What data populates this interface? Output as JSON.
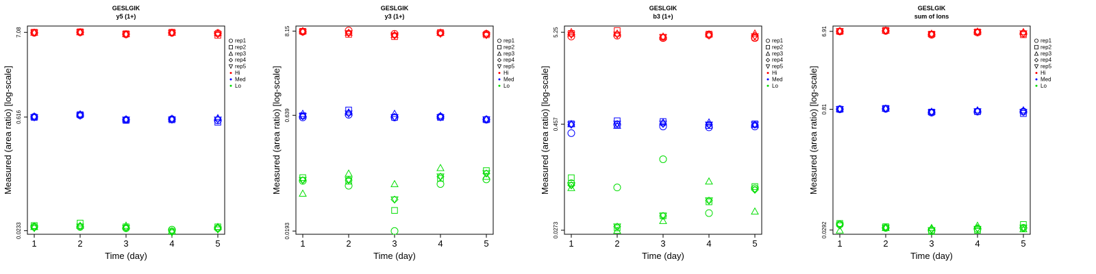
{
  "chart_data": [
    {
      "type": "scatter",
      "title": "GESLGIK",
      "subtitle": "y5 (1+)",
      "xlabel": "Time (day)",
      "ylabel": "Measured (area ratio) [log-scale]",
      "x_ticks": [
        "1",
        "2",
        "3",
        "4",
        "5"
      ],
      "y_tick_labels": [
        "7.08",
        "0.616",
        "0.0233"
      ],
      "y_tick_values": [
        7.08,
        0.616,
        0.0233
      ],
      "ylim": [
        0.021,
        8.5
      ],
      "y_scale": "log",
      "series": [
        {
          "group": "Hi",
          "rep": "rep1",
          "values": [
            7.0,
            7.1,
            6.7,
            7.0,
            6.9
          ]
        },
        {
          "group": "Hi",
          "rep": "rep2",
          "values": [
            7.1,
            7.2,
            6.8,
            7.1,
            6.5
          ]
        },
        {
          "group": "Hi",
          "rep": "rep3",
          "values": [
            7.05,
            7.15,
            6.75,
            7.05,
            7.0
          ]
        },
        {
          "group": "Hi",
          "rep": "rep4",
          "values": [
            7.0,
            7.1,
            6.7,
            7.0,
            6.8
          ]
        },
        {
          "group": "Hi",
          "rep": "rep5",
          "values": [
            7.0,
            7.05,
            6.65,
            6.95,
            6.7
          ]
        },
        {
          "group": "Med",
          "rep": "rep1",
          "values": [
            0.62,
            0.65,
            0.57,
            0.58,
            0.56
          ]
        },
        {
          "group": "Med",
          "rep": "rep2",
          "values": [
            0.61,
            0.66,
            0.56,
            0.57,
            0.53
          ]
        },
        {
          "group": "Med",
          "rep": "rep3",
          "values": [
            0.63,
            0.67,
            0.58,
            0.59,
            0.6
          ]
        },
        {
          "group": "Med",
          "rep": "rep4",
          "values": [
            0.62,
            0.65,
            0.57,
            0.58,
            0.58
          ]
        },
        {
          "group": "Med",
          "rep": "rep5",
          "values": [
            0.61,
            0.64,
            0.57,
            0.57,
            0.57
          ]
        },
        {
          "group": "Lo",
          "rep": "rep1",
          "values": [
            0.026,
            0.026,
            0.025,
            0.024,
            0.025
          ]
        },
        {
          "group": "Lo",
          "rep": "rep2",
          "values": [
            0.027,
            0.029,
            0.026,
            0.023,
            0.026
          ]
        },
        {
          "group": "Lo",
          "rep": "rep3",
          "values": [
            0.026,
            0.027,
            0.027,
            0.023,
            0.026
          ]
        },
        {
          "group": "Lo",
          "rep": "rep4",
          "values": [
            0.026,
            0.026,
            0.025,
            0.023,
            0.025
          ]
        },
        {
          "group": "Lo",
          "rep": "rep5",
          "values": [
            0.025,
            0.026,
            0.025,
            0.022,
            0.024
          ]
        }
      ]
    },
    {
      "type": "scatter",
      "title": "GESLGIK",
      "subtitle": "y3 (1+)",
      "xlabel": "Time (day)",
      "ylabel": "Measured (area ratio) [log-scale]",
      "x_ticks": [
        "1",
        "2",
        "3",
        "4",
        "5"
      ],
      "y_tick_labels": [
        "8.15",
        "0.639",
        "0.0193"
      ],
      "y_tick_values": [
        8.15,
        0.639,
        0.0193
      ],
      "ylim": [
        0.0175,
        9.5
      ],
      "y_scale": "log",
      "series": [
        {
          "group": "Hi",
          "rep": "rep1",
          "values": [
            8.0,
            8.3,
            7.5,
            7.7,
            7.5
          ]
        },
        {
          "group": "Hi",
          "rep": "rep2",
          "values": [
            8.1,
            7.4,
            6.9,
            7.8,
            7.3
          ]
        },
        {
          "group": "Hi",
          "rep": "rep3",
          "values": [
            8.2,
            7.8,
            7.3,
            7.8,
            7.6
          ]
        },
        {
          "group": "Hi",
          "rep": "rep4",
          "values": [
            8.0,
            7.7,
            7.2,
            7.6,
            7.3
          ]
        },
        {
          "group": "Hi",
          "rep": "rep5",
          "values": [
            7.9,
            7.6,
            7.1,
            7.5,
            7.2
          ]
        },
        {
          "group": "Med",
          "rep": "rep1",
          "values": [
            0.6,
            0.65,
            0.6,
            0.61,
            0.56
          ]
        },
        {
          "group": "Med",
          "rep": "rep2",
          "values": [
            0.63,
            0.75,
            0.6,
            0.6,
            0.56
          ]
        },
        {
          "group": "Med",
          "rep": "rep3",
          "values": [
            0.67,
            0.7,
            0.67,
            0.63,
            0.57
          ]
        },
        {
          "group": "Med",
          "rep": "rep4",
          "values": [
            0.62,
            0.68,
            0.61,
            0.61,
            0.56
          ]
        },
        {
          "group": "Med",
          "rep": "rep5",
          "values": [
            0.62,
            0.67,
            0.6,
            0.6,
            0.56
          ]
        },
        {
          "group": "Lo",
          "rep": "rep1",
          "values": [
            0.088,
            0.076,
            0.0193,
            0.08,
            0.092
          ]
        },
        {
          "group": "Lo",
          "rep": "rep2",
          "values": [
            0.097,
            0.087,
            0.036,
            0.095,
            0.12
          ]
        },
        {
          "group": "Lo",
          "rep": "rep3",
          "values": [
            0.06,
            0.11,
            0.08,
            0.13,
            0.1
          ]
        },
        {
          "group": "Lo",
          "rep": "rep4",
          "values": [
            0.09,
            0.09,
            0.05,
            0.1,
            0.11
          ]
        },
        {
          "group": "Lo",
          "rep": "rep5",
          "values": [
            0.09,
            0.09,
            0.05,
            0.1,
            0.11
          ]
        }
      ]
    },
    {
      "type": "scatter",
      "title": "GESLGIK",
      "subtitle": "b3 (1+)",
      "xlabel": "Time (day)",
      "ylabel": "Measured (area ratio) [log-scale]",
      "x_ticks": [
        "1",
        "2",
        "3",
        "4",
        "5"
      ],
      "y_tick_labels": [
        "5.25",
        "0.457",
        "0.0273"
      ],
      "y_tick_values": [
        5.25,
        0.457,
        0.0273
      ],
      "ylim": [
        0.0245,
        6.2
      ],
      "y_scale": "log",
      "series": [
        {
          "group": "Hi",
          "rep": "rep1",
          "values": [
            4.7,
            4.8,
            4.5,
            4.9,
            4.5
          ]
        },
        {
          "group": "Hi",
          "rep": "rep2",
          "values": [
            5.1,
            5.5,
            4.6,
            5.0,
            4.6
          ]
        },
        {
          "group": "Hi",
          "rep": "rep3",
          "values": [
            5.3,
            5.1,
            4.7,
            5.0,
            5.1
          ]
        },
        {
          "group": "Hi",
          "rep": "rep4",
          "values": [
            5.0,
            5.0,
            4.6,
            4.9,
            4.8
          ]
        },
        {
          "group": "Hi",
          "rep": "rep5",
          "values": [
            4.9,
            4.9,
            4.6,
            4.8,
            4.7
          ]
        },
        {
          "group": "Med",
          "rep": "rep1",
          "values": [
            0.36,
            0.45,
            0.43,
            0.42,
            0.43
          ]
        },
        {
          "group": "Med",
          "rep": "rep2",
          "values": [
            0.46,
            0.5,
            0.49,
            0.44,
            0.46
          ]
        },
        {
          "group": "Med",
          "rep": "rep3",
          "values": [
            0.46,
            0.44,
            0.48,
            0.48,
            0.45
          ]
        },
        {
          "group": "Med",
          "rep": "rep4",
          "values": [
            0.45,
            0.46,
            0.46,
            0.45,
            0.45
          ]
        },
        {
          "group": "Med",
          "rep": "rep5",
          "values": [
            0.45,
            0.46,
            0.46,
            0.45,
            0.45
          ]
        },
        {
          "group": "Lo",
          "rep": "rep1",
          "values": [
            0.095,
            0.085,
            0.18,
            0.043,
            0.083
          ]
        },
        {
          "group": "Lo",
          "rep": "rep2",
          "values": [
            0.11,
            0.029,
            0.04,
            0.058,
            0.087
          ]
        },
        {
          "group": "Lo",
          "rep": "rep3",
          "values": [
            0.084,
            0.027,
            0.035,
            0.1,
            0.045
          ]
        },
        {
          "group": "Lo",
          "rep": "rep4",
          "values": [
            0.09,
            0.03,
            0.04,
            0.06,
            0.08
          ]
        },
        {
          "group": "Lo",
          "rep": "rep5",
          "values": [
            0.09,
            0.03,
            0.04,
            0.06,
            0.08
          ]
        }
      ]
    },
    {
      "type": "scatter",
      "title": "GESLGIK",
      "subtitle": "sum of Ions",
      "xlabel": "Time (day)",
      "ylabel": "Measured (area ratio) [log-scale]",
      "x_ticks": [
        "1",
        "2",
        "3",
        "4",
        "5"
      ],
      "y_tick_labels": [
        "6.91",
        "0.81",
        "0.0292"
      ],
      "y_tick_values": [
        6.91,
        0.81,
        0.0292
      ],
      "ylim": [
        0.026,
        8.0
      ],
      "y_scale": "log",
      "series": [
        {
          "group": "Hi",
          "rep": "rep1",
          "values": [
            6.9,
            7.0,
            6.3,
            6.7,
            6.5
          ]
        },
        {
          "group": "Hi",
          "rep": "rep2",
          "values": [
            6.9,
            7.1,
            6.4,
            6.8,
            6.3
          ]
        },
        {
          "group": "Hi",
          "rep": "rep3",
          "values": [
            7.0,
            7.1,
            6.5,
            6.9,
            6.8
          ]
        },
        {
          "group": "Hi",
          "rep": "rep4",
          "values": [
            6.9,
            7.0,
            6.4,
            6.8,
            6.6
          ]
        },
        {
          "group": "Hi",
          "rep": "rep5",
          "values": [
            6.9,
            7.0,
            6.3,
            6.7,
            6.5
          ]
        },
        {
          "group": "Med",
          "rep": "rep1",
          "values": [
            0.81,
            0.82,
            0.74,
            0.76,
            0.76
          ]
        },
        {
          "group": "Med",
          "rep": "rep2",
          "values": [
            0.81,
            0.83,
            0.75,
            0.76,
            0.72
          ]
        },
        {
          "group": "Med",
          "rep": "rep3",
          "values": [
            0.82,
            0.83,
            0.76,
            0.79,
            0.79
          ]
        },
        {
          "group": "Med",
          "rep": "rep4",
          "values": [
            0.81,
            0.82,
            0.75,
            0.77,
            0.76
          ]
        },
        {
          "group": "Med",
          "rep": "rep5",
          "values": [
            0.81,
            0.82,
            0.74,
            0.76,
            0.75
          ]
        },
        {
          "group": "Lo",
          "rep": "rep1",
          "values": [
            0.034,
            0.031,
            0.029,
            0.03,
            0.031
          ]
        },
        {
          "group": "Lo",
          "rep": "rep2",
          "values": [
            0.035,
            0.032,
            0.028,
            0.029,
            0.034
          ]
        },
        {
          "group": "Lo",
          "rep": "rep3",
          "values": [
            0.029,
            0.031,
            0.031,
            0.033,
            0.03
          ]
        },
        {
          "group": "Lo",
          "rep": "rep4",
          "values": [
            0.034,
            0.031,
            0.03,
            0.031,
            0.031
          ]
        },
        {
          "group": "Lo",
          "rep": "rep5",
          "values": [
            0.033,
            0.031,
            0.029,
            0.03,
            0.031
          ]
        }
      ]
    }
  ],
  "legend": {
    "placement": "right of each panel",
    "entries": [
      {
        "label": "rep1",
        "symbol": "circle"
      },
      {
        "label": "rep2",
        "symbol": "square"
      },
      {
        "label": "rep3",
        "symbol": "triangle-up"
      },
      {
        "label": "rep4",
        "symbol": "diamond"
      },
      {
        "label": "rep5",
        "symbol": "triangle-down"
      },
      {
        "label": "Hi",
        "symbol": "dot",
        "color": "#ff0000"
      },
      {
        "label": "Med",
        "symbol": "dot",
        "color": "#0000ff"
      },
      {
        "label": "Lo",
        "symbol": "dot",
        "color": "#00dd00"
      }
    ]
  },
  "colors": {
    "Hi": "#ff0000",
    "Med": "#0000ff",
    "Lo": "#00dd00",
    "axis": "#000000"
  }
}
